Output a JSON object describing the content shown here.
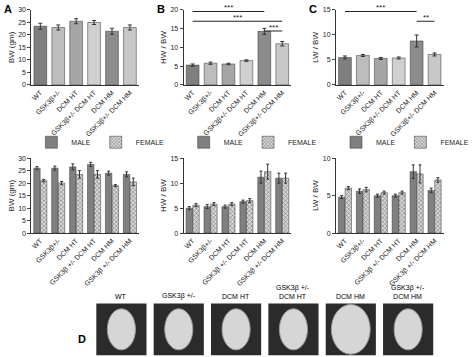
{
  "chart_data": [
    {
      "type": "bar",
      "panel": "A",
      "ylabel": "BW (gm)",
      "categories": [
        "WT",
        "GSK3β+/-",
        "DCM HT",
        "GSK3β+/- DCM HT",
        "DCM HM",
        "GSK3β+/- DCM HM"
      ],
      "values": [
        23.5,
        23,
        25.5,
        25,
        21.5,
        23
      ],
      "errors": [
        1.2,
        1,
        1,
        0.8,
        1.2,
        1
      ],
      "colors": [
        "#7f7f7f",
        "#bdbdbd",
        "#a6a6a6",
        "#d0d0d0",
        "#8c8c8c",
        "#c8c8c8"
      ],
      "ylim": [
        0,
        30
      ],
      "yticks": [
        0,
        5,
        10,
        15,
        20,
        25,
        30
      ],
      "grid": false
    },
    {
      "type": "bar",
      "panel": "B",
      "ylabel": "HW / BW",
      "categories": [
        "WT",
        "GSK3β+/-",
        "DCM HT",
        "GSK3β+/- DCM HT",
        "DCM HM",
        "GSK3β+/- DCM HM"
      ],
      "values": [
        5.3,
        5.8,
        5.6,
        6.5,
        14.3,
        11
      ],
      "errors": [
        0.3,
        0.3,
        0.2,
        0.2,
        0.8,
        0.6
      ],
      "colors": [
        "#7f7f7f",
        "#bdbdbd",
        "#a6a6a6",
        "#d0d0d0",
        "#8c8c8c",
        "#c8c8c8"
      ],
      "ylim": [
        0,
        20
      ],
      "yticks": [
        0,
        5,
        10,
        15,
        20
      ],
      "grid": false,
      "annotations": [
        {
          "from": "WT",
          "to": "DCM HM",
          "text": "***"
        },
        {
          "from": "WT",
          "to": "GSK3β+/- DCM HM",
          "text": "***"
        },
        {
          "from": "DCM HM",
          "to": "GSK3β+/- DCM HM",
          "text": "***"
        }
      ]
    },
    {
      "type": "bar",
      "panel": "C",
      "ylabel": "LW / BW",
      "categories": [
        "WT",
        "GSK3β+/-",
        "DCM HT",
        "GSK3β+/- DCM HT",
        "DCM HM",
        "GSK3β+/- DCM HM"
      ],
      "values": [
        5.5,
        5.9,
        5.3,
        5.4,
        8.8,
        6.1
      ],
      "errors": [
        0.3,
        0.2,
        0.2,
        0.2,
        1.2,
        0.3
      ],
      "colors": [
        "#7f7f7f",
        "#bdbdbd",
        "#a6a6a6",
        "#d0d0d0",
        "#8c8c8c",
        "#c8c8c8"
      ],
      "ylim": [
        0,
        15
      ],
      "yticks": [
        0,
        5,
        10,
        15
      ],
      "grid": false,
      "annotations": [
        {
          "from": "WT",
          "to": "DCM HM",
          "text": "***"
        },
        {
          "from": "DCM HM",
          "to": "GSK3β+/- DCM HM",
          "text": "**"
        }
      ]
    },
    {
      "type": "bar",
      "ylabel": "BW (gm)",
      "categories": [
        "WT",
        "GSK3β+/-",
        "DCM HT",
        "GSK3β +/- DCM HT",
        "DCM HM",
        "GSK3β +/- DCM HM"
      ],
      "series": [
        {
          "name": "MALE",
          "color": "#808080",
          "values": [
            26,
            26,
            26.5,
            27.5,
            24,
            23.5
          ],
          "errors": [
            0.6,
            0.8,
            1.2,
            0.8,
            0.8,
            1
          ]
        },
        {
          "name": "FEMALE",
          "color": "#d9d9d9",
          "marker": "checkered",
          "values": [
            21,
            20,
            23.5,
            23.5,
            19,
            20.5
          ],
          "errors": [
            0.5,
            0.6,
            1.5,
            1.5,
            0.4,
            1.5
          ]
        }
      ],
      "ylim": [
        0,
        30
      ],
      "yticks": [
        0,
        5,
        10,
        15,
        20,
        25,
        30
      ],
      "grid": false,
      "legend": "top left"
    },
    {
      "type": "bar",
      "ylabel": "HW / BW",
      "categories": [
        "WT",
        "GSK3β+/-",
        "DCM HT",
        "GSK3β +/- DCM HT",
        "DCM HM",
        "GSK3β +/- DCM HM"
      ],
      "series": [
        {
          "name": "MALE",
          "color": "#808080",
          "values": [
            5,
            5.3,
            5.3,
            6.3,
            11.2,
            11
          ],
          "errors": [
            0.3,
            0.4,
            0.3,
            0.3,
            1.2,
            1
          ]
        },
        {
          "name": "FEMALE",
          "color": "#d9d9d9",
          "marker": "checkered",
          "values": [
            5.6,
            5.8,
            5.8,
            6.5,
            12.3,
            11
          ],
          "errors": [
            0.3,
            0.3,
            0.3,
            0.4,
            1.5,
            1
          ]
        }
      ],
      "ylim": [
        0,
        15
      ],
      "yticks": [
        0,
        5,
        10,
        15
      ],
      "grid": false,
      "legend": "top left"
    },
    {
      "type": "bar",
      "ylabel": "LW / BW",
      "categories": [
        "WT",
        "GSK3β+/-",
        "DCM HT",
        "GSK3β +/- DCM HT",
        "DCM HM",
        "GSK3β +/- DCM HM"
      ],
      "series": [
        {
          "name": "MALE",
          "color": "#808080",
          "values": [
            4.8,
            5.6,
            5,
            5,
            8.2,
            5.7
          ],
          "errors": [
            0.2,
            0.3,
            0.2,
            0.2,
            0.9,
            0.3
          ]
        },
        {
          "name": "FEMALE",
          "color": "#d9d9d9",
          "marker": "checkered",
          "values": [
            6,
            5.8,
            5.4,
            5.4,
            7.9,
            7.1
          ],
          "errors": [
            0.2,
            0.3,
            0.2,
            0.2,
            1.2,
            0.3
          ]
        }
      ],
      "ylim": [
        0,
        10
      ],
      "yticks": [
        0,
        5,
        10
      ],
      "grid": false,
      "legend": "top left"
    },
    {
      "type": "image",
      "panel": "D",
      "labels": [
        [
          "WT"
        ],
        [
          "GSK3β +/-"
        ],
        [
          "DCM HT"
        ],
        [
          "GSK3β +/-",
          "DCM HT"
        ],
        [
          "DCM HM"
        ],
        [
          "GSK3β +/-",
          "DCM HM"
        ]
      ]
    }
  ]
}
